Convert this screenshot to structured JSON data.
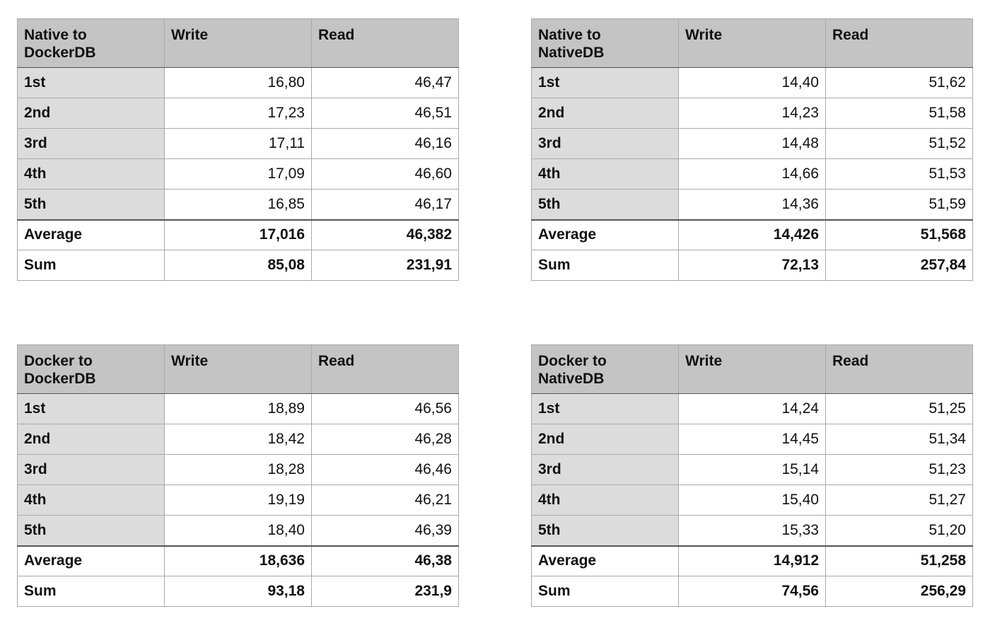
{
  "tables": [
    {
      "title": "Native to\nDockerDB",
      "col_write": "Write",
      "col_read": "Read",
      "rows": [
        {
          "label": "1st",
          "write": "16,80",
          "read": "46,47"
        },
        {
          "label": "2nd",
          "write": "17,23",
          "read": "46,51"
        },
        {
          "label": "3rd",
          "write": "17,11",
          "read": "46,16"
        },
        {
          "label": "4th",
          "write": "17,09",
          "read": "46,60"
        },
        {
          "label": "5th",
          "write": "16,85",
          "read": "46,17"
        }
      ],
      "average": {
        "label": "Average",
        "write": "17,016",
        "read": "46,382"
      },
      "sum": {
        "label": "Sum",
        "write": "85,08",
        "read": "231,91"
      }
    },
    {
      "title": "Native to\nNativeDB",
      "col_write": "Write",
      "col_read": "Read",
      "rows": [
        {
          "label": "1st",
          "write": "14,40",
          "read": "51,62"
        },
        {
          "label": "2nd",
          "write": "14,23",
          "read": "51,58"
        },
        {
          "label": "3rd",
          "write": "14,48",
          "read": "51,52"
        },
        {
          "label": "4th",
          "write": "14,66",
          "read": "51,53"
        },
        {
          "label": "5th",
          "write": "14,36",
          "read": "51,59"
        }
      ],
      "average": {
        "label": "Average",
        "write": "14,426",
        "read": "51,568"
      },
      "sum": {
        "label": "Sum",
        "write": "72,13",
        "read": "257,84"
      }
    },
    {
      "title": "Docker to\nDockerDB",
      "col_write": "Write",
      "col_read": "Read",
      "rows": [
        {
          "label": "1st",
          "write": "18,89",
          "read": "46,56"
        },
        {
          "label": "2nd",
          "write": "18,42",
          "read": "46,28"
        },
        {
          "label": "3rd",
          "write": "18,28",
          "read": "46,46"
        },
        {
          "label": "4th",
          "write": "19,19",
          "read": "46,21"
        },
        {
          "label": "5th",
          "write": "18,40",
          "read": "46,39"
        }
      ],
      "average": {
        "label": "Average",
        "write": "18,636",
        "read": "46,38"
      },
      "sum": {
        "label": "Sum",
        "write": "93,18",
        "read": "231,9"
      }
    },
    {
      "title": "Docker to\nNativeDB",
      "col_write": "Write",
      "col_read": "Read",
      "rows": [
        {
          "label": "1st",
          "write": "14,24",
          "read": "51,25"
        },
        {
          "label": "2nd",
          "write": "14,45",
          "read": "51,34"
        },
        {
          "label": "3rd",
          "write": "15,14",
          "read": "51,23"
        },
        {
          "label": "4th",
          "write": "15,40",
          "read": "51,27"
        },
        {
          "label": "5th",
          "write": "15,33",
          "read": "51,20"
        }
      ],
      "average": {
        "label": "Average",
        "write": "14,912",
        "read": "51,258"
      },
      "sum": {
        "label": "Sum",
        "write": "74,56",
        "read": "256,29"
      }
    }
  ]
}
